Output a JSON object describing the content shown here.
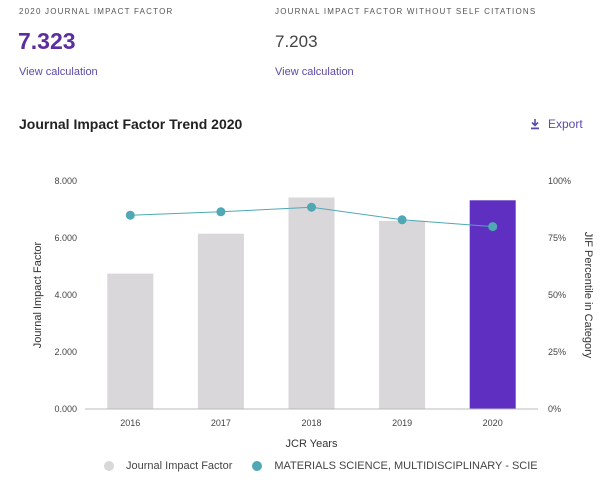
{
  "metrics": {
    "jif": {
      "label": "2020 JOURNAL IMPACT FACTOR",
      "value": "7.323",
      "link": "View calculation"
    },
    "jif_no_self": {
      "label": "JOURNAL IMPACT FACTOR WITHOUT SELF CITATIONS",
      "value": "7.203",
      "link": "View calculation"
    }
  },
  "section": {
    "title": "Journal Impact Factor Trend 2020",
    "export_label": "Export"
  },
  "colors": {
    "bar": "#d9d7d9",
    "highlight_bar": "#5f2fc1",
    "line": "#4fa8b4",
    "purple_text": "#5b2d9e"
  },
  "chart_data": {
    "type": "bar",
    "categories": [
      "2016",
      "2017",
      "2018",
      "2019",
      "2020"
    ],
    "highlight_category": "2020",
    "xlabel": "JCR Years",
    "ylabel": "Journal Impact Factor",
    "ylabel_right": "JIF Percentile in Category",
    "ylim": [
      0,
      8
    ],
    "y_ticks": [
      "0.000",
      "2.000",
      "4.000",
      "6.000",
      "8.000"
    ],
    "y2lim": [
      0,
      100
    ],
    "y2_ticks": [
      "0%",
      "25%",
      "50%",
      "75%",
      "100%"
    ],
    "grid": false,
    "legend_position": "bottom",
    "series": [
      {
        "name": "Journal Impact Factor",
        "type": "bar",
        "axis": "left",
        "values": [
          4.75,
          6.15,
          7.42,
          6.6,
          7.323
        ]
      },
      {
        "name": "MATERIALS SCIENCE, MULTIDISCIPLINARY - SCIE",
        "type": "line",
        "axis": "right",
        "values": [
          85,
          86.5,
          88.5,
          83,
          80
        ]
      }
    ]
  }
}
